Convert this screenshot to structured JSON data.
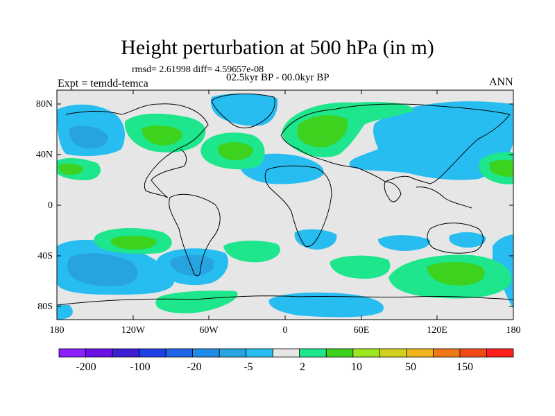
{
  "title": "Height perturbation at 500 hPa (in m)",
  "stats": "rmsd= 2.61998  diff= 4.59657e-08",
  "period": "02.5kyr BP - 00.0kyr BP",
  "experiment": "Expt = temdd-temca",
  "season": "ANN",
  "map": {
    "lon_range": [
      -180,
      180
    ],
    "lat_range": [
      -90,
      90
    ],
    "background_color": "#e6e6e6",
    "x_ticks": [
      "180",
      "120W",
      "60W",
      "0",
      "60E",
      "120E",
      "180"
    ],
    "y_ticks": [
      "80N",
      "40N",
      "0",
      "40S",
      "80S"
    ]
  },
  "colorbar": {
    "colors": [
      "#8c1eff",
      "#6a0fe6",
      "#3d1fd6",
      "#1f3fe6",
      "#1f63e6",
      "#1e8be6",
      "#27a4e0",
      "#27bdf0",
      "#e6e6e6",
      "#1ee68c",
      "#3cd21e",
      "#a0e61e",
      "#d2d21e",
      "#f0b41e",
      "#f07814",
      "#f04b14",
      "#ff1e1e"
    ],
    "labels": [
      "-200",
      "-100",
      "-20",
      "-5",
      "2",
      "10",
      "50",
      "150"
    ],
    "label_bins": [
      1,
      3,
      5,
      7,
      9,
      11,
      13,
      15
    ]
  }
}
